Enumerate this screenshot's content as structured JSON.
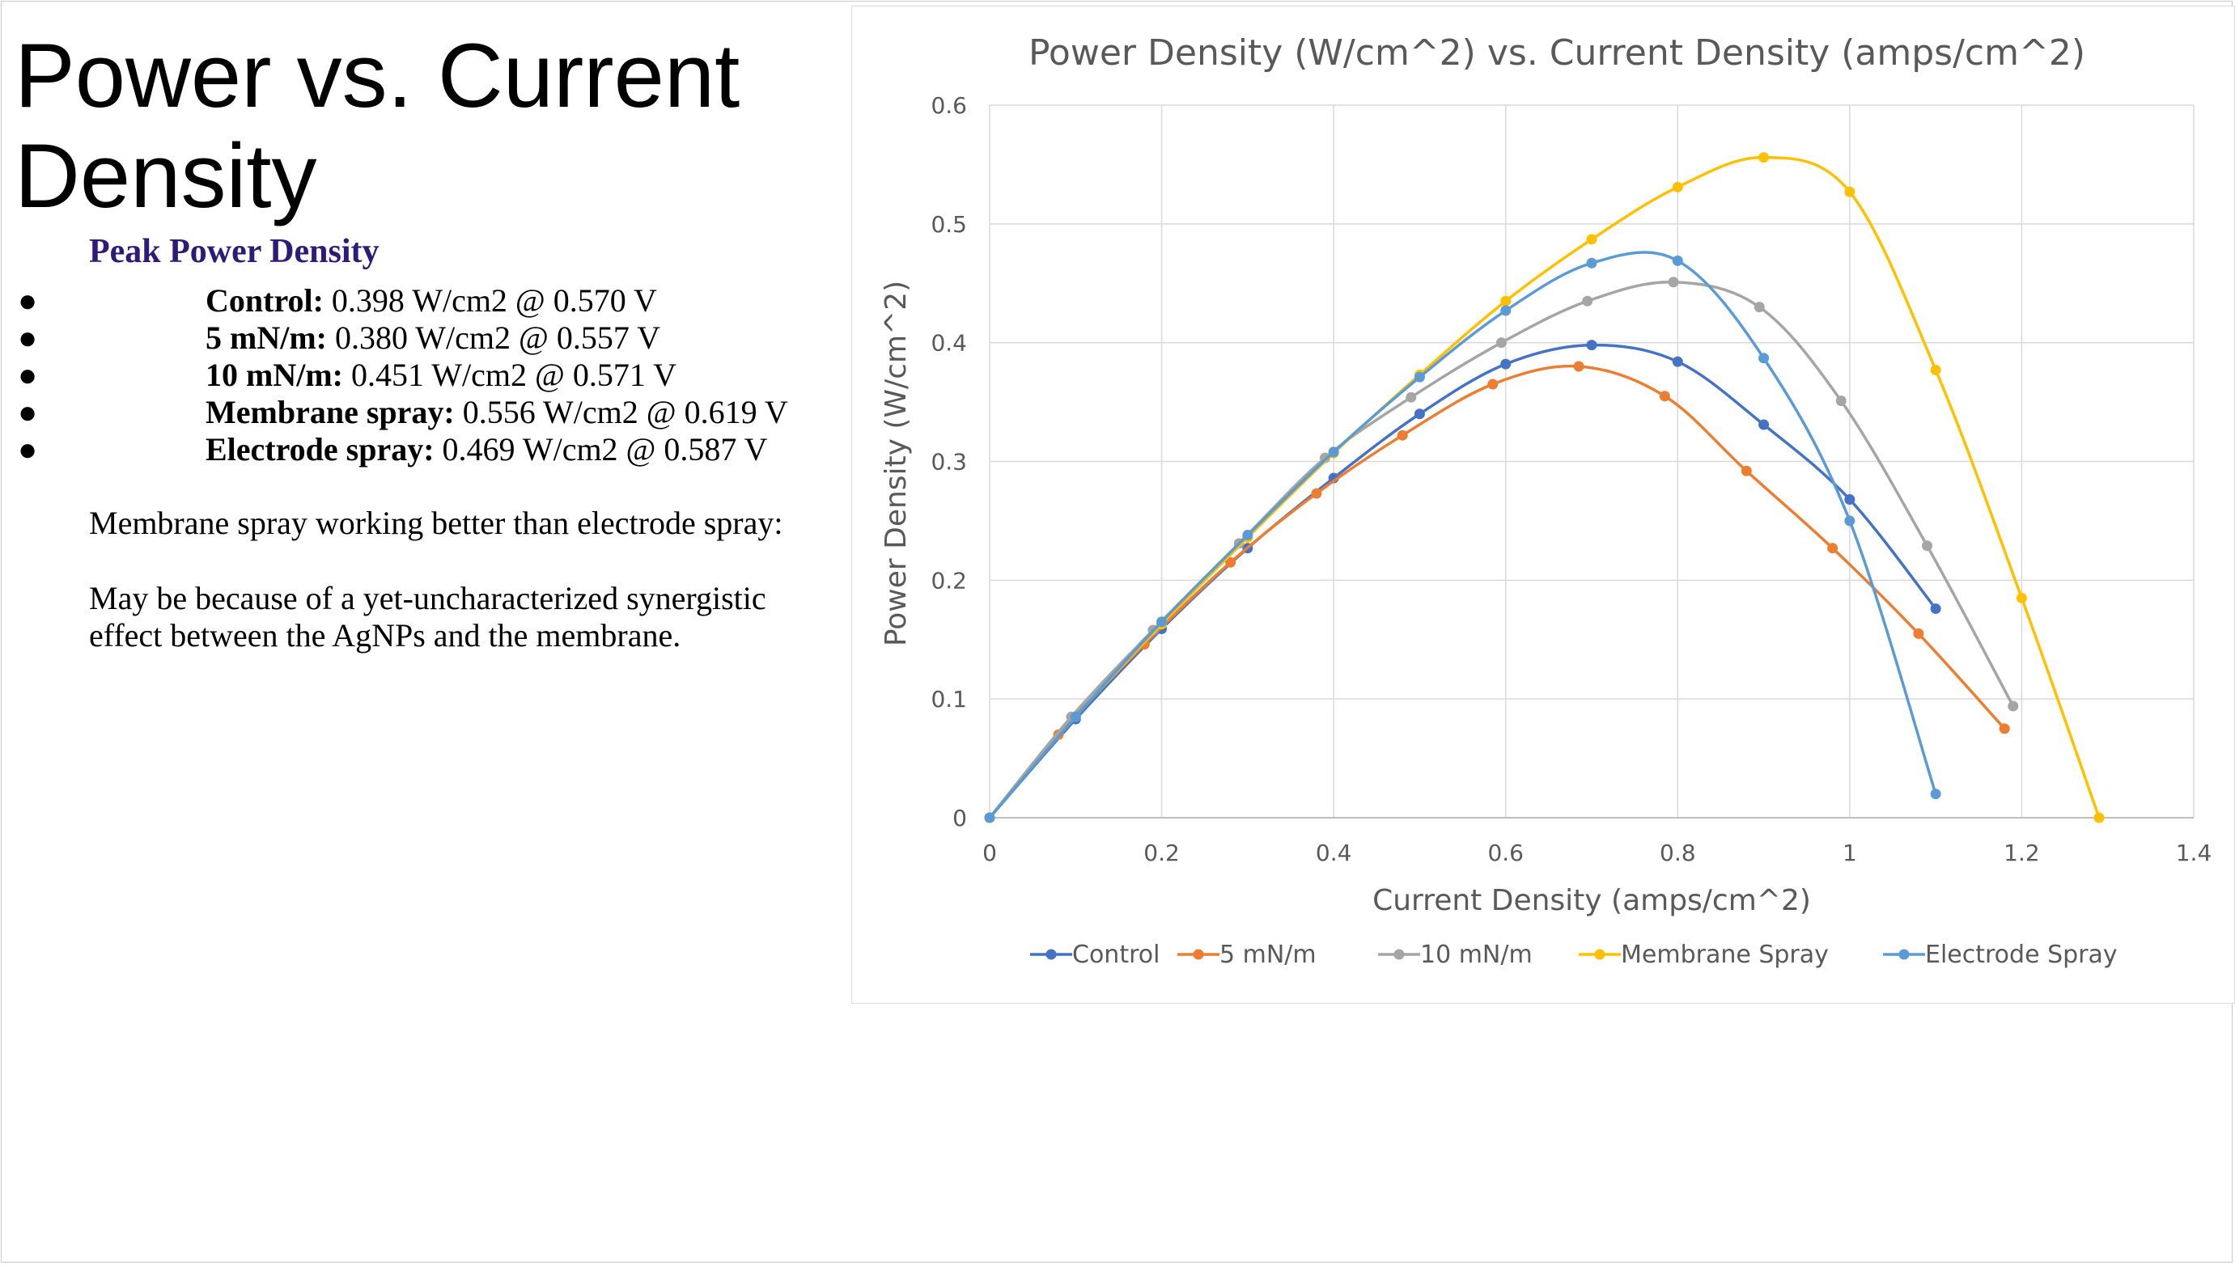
{
  "slide": {
    "title_lines": [
      "Power vs. Current",
      "Density"
    ],
    "peak_heading": "Peak Power Density",
    "bullet_char": "●",
    "peaks": [
      {
        "label": "Control:",
        "value": " 0.398 W/cm2 @ 0.570 V"
      },
      {
        "label": "5 mN/m:",
        "value": " 0.380 W/cm2 @ 0.557 V"
      },
      {
        "label": "10 mN/m:",
        "value": " 0.451 W/cm2 @ 0.571 V"
      },
      {
        "label": "Membrane spray:",
        "value": " 0.556 W/cm2 @ 0.619 V"
      },
      {
        "label": "Electrode spray:",
        "value": " 0.469 W/cm2 @ 0.587 V"
      }
    ],
    "paragraph1": "Membrane spray working better than electrode spray:",
    "paragraph2": "May be because of a yet-uncharacterized synergistic effect between the AgNPs and the membrane."
  },
  "chart_data": {
    "type": "scatter",
    "title": "Power Density (W/cm^2) vs. Current Density (amps/cm^2)",
    "xlabel": "Current Density (amps/cm^2)",
    "ylabel": "Power Density (W/cm^2)",
    "xlim": [
      0,
      1.4
    ],
    "ylim": [
      0,
      0.6
    ],
    "x_ticks": [
      0,
      0.2,
      0.4,
      0.6,
      0.8,
      1,
      1.2,
      1.4
    ],
    "y_ticks": [
      0,
      0.1,
      0.2,
      0.3,
      0.4,
      0.5,
      0.6
    ],
    "x_tick_labels": [
      "0",
      "0.2",
      "0.4",
      "0.6",
      "0.8",
      "1",
      "1.2",
      "1.4"
    ],
    "y_tick_labels": [
      "0",
      "0.1",
      "0.2",
      "0.3",
      "0.4",
      "0.5",
      "0.6"
    ],
    "grid": true,
    "smoothed_lines": true,
    "legend_position": "bottom",
    "series": [
      {
        "name": "Control",
        "color": "#4472C4",
        "points": [
          [
            0,
            0
          ],
          [
            0.1,
            0.083
          ],
          [
            0.2,
            0.159
          ],
          [
            0.3,
            0.227
          ],
          [
            0.4,
            0.286
          ],
          [
            0.5,
            0.34
          ],
          [
            0.6,
            0.382
          ],
          [
            0.7,
            0.398
          ],
          [
            0.8,
            0.384
          ],
          [
            0.9,
            0.331
          ],
          [
            1.0,
            0.268
          ],
          [
            1.1,
            0.176
          ]
        ]
      },
      {
        "name": "5 mN/m",
        "color": "#ED7D31",
        "points": [
          [
            0,
            0
          ],
          [
            0.08,
            0.07
          ],
          [
            0.18,
            0.146
          ],
          [
            0.28,
            0.215
          ],
          [
            0.38,
            0.273
          ],
          [
            0.48,
            0.322
          ],
          [
            0.585,
            0.365
          ],
          [
            0.685,
            0.38
          ],
          [
            0.785,
            0.355
          ],
          [
            0.88,
            0.292
          ],
          [
            0.98,
            0.227
          ],
          [
            1.08,
            0.155
          ],
          [
            1.18,
            0.075
          ]
        ]
      },
      {
        "name": "10 mN/m",
        "color": "#A5A5A5",
        "points": [
          [
            0,
            0
          ],
          [
            0.095,
            0.085
          ],
          [
            0.19,
            0.158
          ],
          [
            0.29,
            0.231
          ],
          [
            0.39,
            0.303
          ],
          [
            0.49,
            0.354
          ],
          [
            0.595,
            0.4
          ],
          [
            0.695,
            0.435
          ],
          [
            0.795,
            0.451
          ],
          [
            0.895,
            0.43
          ],
          [
            0.99,
            0.351
          ],
          [
            1.09,
            0.229
          ],
          [
            1.19,
            0.094
          ]
        ]
      },
      {
        "name": "Membrane Spray",
        "color": "#FFC000",
        "points": [
          [
            0,
            0
          ],
          [
            0.1,
            0.085
          ],
          [
            0.2,
            0.163
          ],
          [
            0.3,
            0.236
          ],
          [
            0.4,
            0.307
          ],
          [
            0.5,
            0.373
          ],
          [
            0.6,
            0.435
          ],
          [
            0.7,
            0.487
          ],
          [
            0.8,
            0.531
          ],
          [
            0.9,
            0.556
          ],
          [
            1.0,
            0.527
          ],
          [
            1.1,
            0.377
          ],
          [
            1.2,
            0.185
          ],
          [
            1.29,
            0.0
          ]
        ]
      },
      {
        "name": "Electrode Spray",
        "color": "#5B9BD5",
        "points": [
          [
            0,
            0
          ],
          [
            0.1,
            0.085
          ],
          [
            0.2,
            0.165
          ],
          [
            0.3,
            0.238
          ],
          [
            0.4,
            0.308
          ],
          [
            0.5,
            0.371
          ],
          [
            0.6,
            0.427
          ],
          [
            0.7,
            0.467
          ],
          [
            0.8,
            0.469
          ],
          [
            0.9,
            0.387
          ],
          [
            1.0,
            0.25
          ],
          [
            1.1,
            0.02
          ]
        ]
      }
    ]
  }
}
